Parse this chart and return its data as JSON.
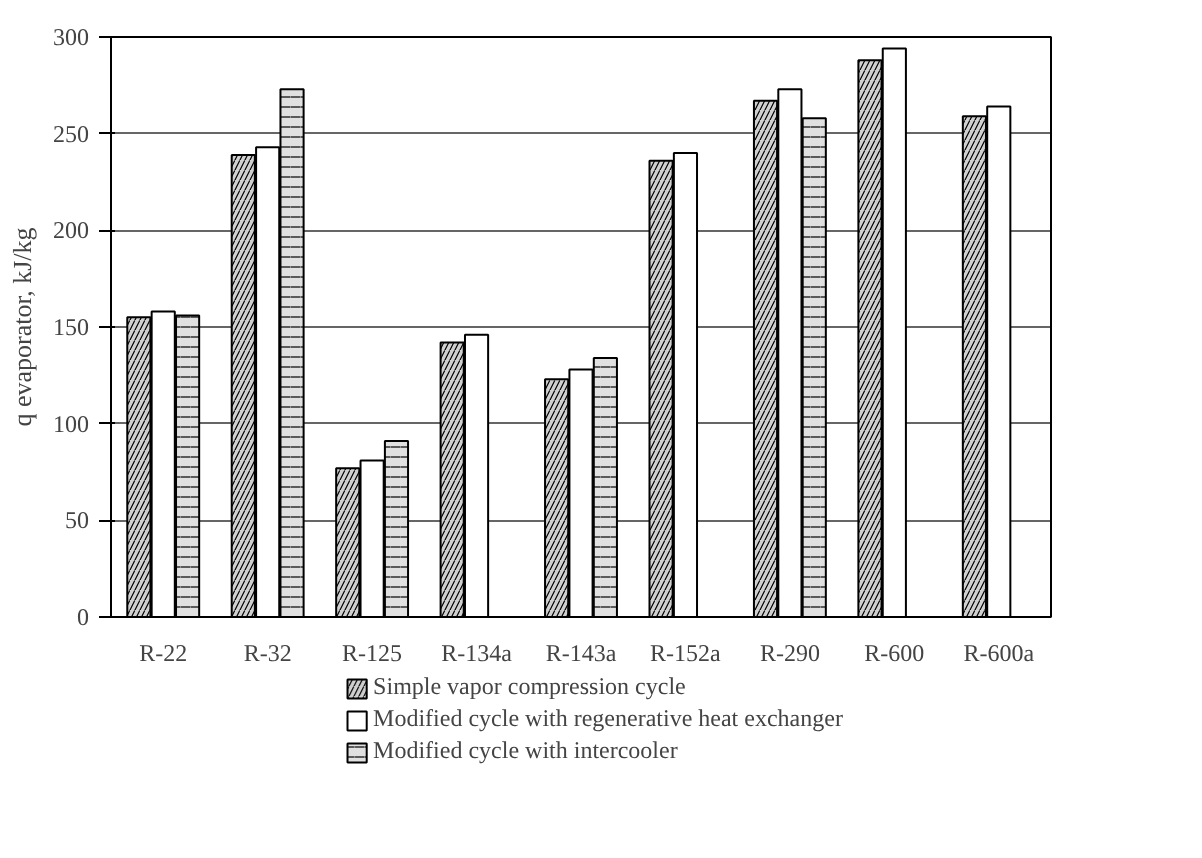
{
  "chart_data": {
    "type": "bar",
    "ylabel": "q evaporator, kJ/kg",
    "categories": [
      "R-22",
      "R-32",
      "R-125",
      "R-134a",
      "R-143a",
      "R-152a",
      "R-290",
      "R-600",
      "R-600a"
    ],
    "series": [
      {
        "name": "Simple vapor compression cycle",
        "color": "#d0d0d0",
        "values": [
          155,
          239,
          77,
          142,
          123,
          236,
          267,
          288,
          259
        ]
      },
      {
        "name": "Modified cycle with regenerative heat exchanger",
        "color": "#ffffff",
        "values": [
          158,
          243,
          81,
          146,
          128,
          240,
          273,
          294,
          264
        ]
      },
      {
        "name": "Modified cycle with intercooler",
        "color": "#e0e0e0",
        "values": [
          156,
          273,
          91,
          null,
          134,
          null,
          258,
          null,
          null
        ]
      }
    ],
    "ylim": [
      0,
      300
    ],
    "yticks": [
      0,
      50,
      100,
      150,
      200,
      250,
      300
    ],
    "grid": "y",
    "legend": "bottom"
  }
}
